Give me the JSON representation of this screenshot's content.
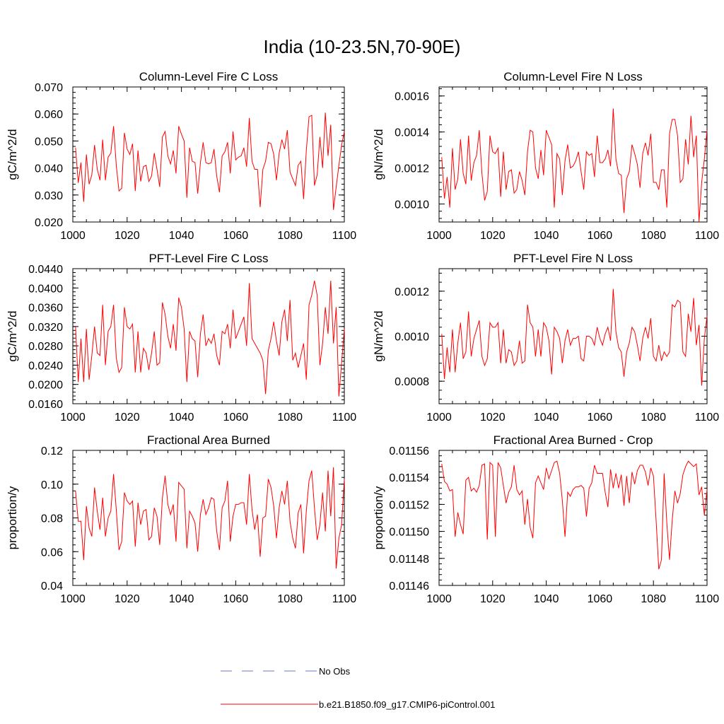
{
  "figure": {
    "title": "India (10-23.5N,70-90E)",
    "line_color": "#ff0000",
    "obs_color": "#6a7bbf",
    "legend": [
      {
        "label": "No Obs",
        "style": "dashed"
      },
      {
        "label": "b.e21.B1850.f09_g17.CMIP6-piControl.001",
        "style": "solid"
      }
    ]
  },
  "chart_data": [
    {
      "type": "line",
      "title": "Column-Level Fire C Loss",
      "ylabel": "gC/m^2/d",
      "xlim": [
        1000,
        1100
      ],
      "ylim": [
        0.02,
        0.07
      ],
      "xticks": [
        "1000",
        "1020",
        "1040",
        "1060",
        "1080",
        "1100"
      ],
      "yticks": [
        "0.020",
        "0.030",
        "0.040",
        "0.050",
        "0.060",
        "0.070"
      ],
      "x_start": 1001,
      "values": [
        0.0475,
        0.0345,
        0.042,
        0.0275,
        0.045,
        0.034,
        0.0375,
        0.0485,
        0.0395,
        0.0355,
        0.0505,
        0.0355,
        0.044,
        0.0455,
        0.0555,
        0.041,
        0.0315,
        0.0325,
        0.053,
        0.047,
        0.045,
        0.049,
        0.0315,
        0.0465,
        0.035,
        0.0405,
        0.041,
        0.035,
        0.037,
        0.0455,
        0.0395,
        0.033,
        0.0515,
        0.0535,
        0.0445,
        0.0415,
        0.0465,
        0.038,
        0.0555,
        0.0525,
        0.05,
        0.029,
        0.0475,
        0.0425,
        0.042,
        0.0305,
        0.042,
        0.0495,
        0.042,
        0.0415,
        0.042,
        0.047,
        0.037,
        0.031,
        0.0445,
        0.046,
        0.0495,
        0.038,
        0.0535,
        0.043,
        0.044,
        0.0445,
        0.0475,
        0.0405,
        0.0585,
        0.0425,
        0.0395,
        0.0395,
        0.0255,
        0.0395,
        0.0425,
        0.0495,
        0.049,
        0.045,
        0.0355,
        0.0455,
        0.0505,
        0.047,
        0.054,
        0.0385,
        0.036,
        0.0335,
        0.041,
        0.0425,
        0.0285,
        0.0465,
        0.059,
        0.0595,
        0.0335,
        0.0375,
        0.0515,
        0.04,
        0.0605,
        0.0445,
        0.056,
        0.0245,
        0.033,
        0.041,
        0.0485,
        0.0535
      ]
    },
    {
      "type": "line",
      "title": "Column-Level Fire N Loss",
      "ylabel": "gN/m^2/d",
      "xlim": [
        1000,
        1100
      ],
      "ylim": [
        0.0009,
        0.00165
      ],
      "xticks": [
        "1000",
        "1020",
        "1040",
        "1060",
        "1080",
        "1100"
      ],
      "yticks": [
        "0.0010",
        "0.0012",
        "0.0014",
        "0.0016"
      ],
      "ytick_values": [
        0.001,
        0.0012,
        0.0014,
        0.0016
      ],
      "x_start": 1001,
      "values": [
        0.00126,
        0.00103,
        0.00115,
        0.00098,
        0.00131,
        0.00108,
        0.00114,
        0.00136,
        0.00117,
        0.00111,
        0.00138,
        0.00113,
        0.00123,
        0.00127,
        0.00141,
        0.00117,
        0.00102,
        0.00107,
        0.00138,
        0.00129,
        0.00128,
        0.00131,
        0.00104,
        0.00129,
        0.00108,
        0.00118,
        0.00119,
        0.00106,
        0.00108,
        0.00118,
        0.00113,
        0.00105,
        0.00129,
        0.00141,
        0.0014,
        0.0012,
        0.00114,
        0.0013,
        0.00116,
        0.00141,
        0.00137,
        0.00133,
        0.00098,
        0.00128,
        0.00125,
        0.00105,
        0.00124,
        0.00133,
        0.0012,
        0.00121,
        0.00124,
        0.00129,
        0.00118,
        0.00108,
        0.00129,
        0.00127,
        0.00128,
        0.00115,
        0.00138,
        0.00123,
        0.00123,
        0.00125,
        0.0013,
        0.00121,
        0.00153,
        0.00125,
        0.00117,
        0.00116,
        0.00095,
        0.00114,
        0.00118,
        0.00133,
        0.00128,
        0.00122,
        0.00109,
        0.00128,
        0.00134,
        0.00127,
        0.00139,
        0.00112,
        0.00112,
        0.00108,
        0.00119,
        0.00119,
        0.00098,
        0.00139,
        0.00147,
        0.00147,
        0.00138,
        0.00112,
        0.00114,
        0.00136,
        0.00122,
        0.00149,
        0.00126,
        0.00138,
        0.0009,
        0.00112,
        0.00125,
        0.00141
      ]
    },
    {
      "type": "line",
      "title": "PFT-Level Fire C Loss",
      "ylabel": "gC/m^2/d",
      "xlim": [
        1000,
        1100
      ],
      "ylim": [
        0.016,
        0.044
      ],
      "xticks": [
        "1000",
        "1020",
        "1040",
        "1060",
        "1080",
        "1100"
      ],
      "yticks": [
        "0.0160",
        "0.0200",
        "0.0240",
        "0.0280",
        "0.0320",
        "0.0360",
        "0.0400",
        "0.0440"
      ],
      "x_start": 1001,
      "values": [
        0.032,
        0.0205,
        0.0295,
        0.0205,
        0.0315,
        0.021,
        0.026,
        0.032,
        0.0265,
        0.026,
        0.0365,
        0.024,
        0.031,
        0.032,
        0.0365,
        0.0255,
        0.0225,
        0.0235,
        0.036,
        0.032,
        0.0315,
        0.0325,
        0.0225,
        0.031,
        0.0225,
        0.0275,
        0.0265,
        0.023,
        0.0265,
        0.031,
        0.024,
        0.0245,
        0.037,
        0.0345,
        0.03,
        0.0275,
        0.0325,
        0.027,
        0.038,
        0.036,
        0.0315,
        0.0205,
        0.031,
        0.0295,
        0.029,
        0.0215,
        0.0305,
        0.0345,
        0.028,
        0.0295,
        0.0285,
        0.0305,
        0.026,
        0.024,
        0.031,
        0.0305,
        0.0325,
        0.0275,
        0.0355,
        0.0295,
        0.031,
        0.0325,
        0.034,
        0.028,
        0.041,
        0.0295,
        0.0285,
        0.0275,
        0.0265,
        0.025,
        0.018,
        0.027,
        0.0295,
        0.033,
        0.029,
        0.026,
        0.033,
        0.0355,
        0.029,
        0.0375,
        0.025,
        0.0265,
        0.0235,
        0.026,
        0.0285,
        0.021,
        0.0365,
        0.0385,
        0.0415,
        0.0385,
        0.024,
        0.0285,
        0.036,
        0.0305,
        0.0415,
        0.0285,
        0.036,
        0.0175,
        0.0245,
        0.0315
      ]
    },
    {
      "type": "line",
      "title": "PFT-Level Fire N Loss",
      "ylabel": "gN/m^2/d",
      "xlim": [
        1000,
        1100
      ],
      "ylim": [
        0.0007,
        0.0013
      ],
      "xticks": [
        "1000",
        "1020",
        "1040",
        "1060",
        "1080",
        "1100"
      ],
      "yticks": [
        "0.0008",
        "0.0010",
        "0.0012"
      ],
      "ytick_values": [
        0.0008,
        0.001,
        0.0012
      ],
      "x_start": 1001,
      "values": [
        0.00101,
        0.00081,
        0.00095,
        0.00084,
        0.00103,
        0.00084,
        0.00097,
        0.00106,
        0.0009,
        0.00093,
        0.00111,
        0.00091,
        0.00099,
        0.00103,
        0.00107,
        0.00091,
        0.00087,
        0.0009,
        0.00106,
        0.00104,
        0.00104,
        0.00106,
        0.00088,
        0.00103,
        0.00088,
        0.00094,
        0.00093,
        0.00087,
        0.00089,
        0.00098,
        0.00088,
        0.00089,
        0.00114,
        0.00106,
        0.00104,
        0.00091,
        0.00103,
        0.00091,
        0.00106,
        0.00104,
        0.00098,
        0.00083,
        0.00104,
        0.00102,
        0.00099,
        0.00088,
        0.00098,
        0.00103,
        0.00096,
        0.00099,
        0.00099,
        0.001,
        0.0009,
        0.00089,
        0.001,
        0.001,
        0.00099,
        0.00096,
        0.00104,
        0.00099,
        0.00096,
        0.00101,
        0.00104,
        0.00098,
        0.00121,
        0.00102,
        0.00095,
        0.00093,
        0.00082,
        0.00093,
        0.00097,
        0.00104,
        0.00102,
        0.00096,
        0.00089,
        0.00099,
        0.00104,
        0.00099,
        0.00108,
        0.00091,
        0.00089,
        0.00096,
        0.00089,
        0.00093,
        0.00091,
        0.00093,
        0.00114,
        0.00113,
        0.00116,
        0.00115,
        0.00093,
        0.00091,
        0.0011,
        0.00102,
        0.00117,
        0.00096,
        0.00105,
        0.00078,
        0.00099,
        0.00109
      ]
    },
    {
      "type": "line",
      "title": "Fractional Area Burned",
      "ylabel": "proportion/y",
      "xlim": [
        1000,
        1100
      ],
      "ylim": [
        0.04,
        0.12
      ],
      "xticks": [
        "1000",
        "1020",
        "1040",
        "1060",
        "1080",
        "1100"
      ],
      "yticks": [
        "0.04",
        "0.06",
        "0.08",
        "0.10",
        "0.12"
      ],
      "ytick_values": [
        0.04,
        0.06,
        0.08,
        0.1,
        0.12
      ],
      "x_start": 1001,
      "values": [
        0.096,
        0.078,
        0.078,
        0.055,
        0.087,
        0.074,
        0.069,
        0.098,
        0.084,
        0.073,
        0.092,
        0.069,
        0.08,
        0.084,
        0.106,
        0.085,
        0.061,
        0.066,
        0.095,
        0.09,
        0.088,
        0.09,
        0.063,
        0.089,
        0.076,
        0.084,
        0.085,
        0.067,
        0.069,
        0.086,
        0.081,
        0.064,
        0.092,
        0.105,
        0.088,
        0.082,
        0.088,
        0.066,
        0.101,
        0.099,
        0.097,
        0.062,
        0.084,
        0.081,
        0.077,
        0.06,
        0.082,
        0.091,
        0.082,
        0.086,
        0.092,
        0.091,
        0.072,
        0.061,
        0.086,
        0.09,
        0.102,
        0.066,
        0.081,
        0.088,
        0.088,
        0.089,
        0.089,
        0.076,
        0.106,
        0.085,
        0.073,
        0.082,
        0.057,
        0.08,
        0.081,
        0.103,
        0.098,
        0.087,
        0.068,
        0.086,
        0.096,
        0.088,
        0.102,
        0.078,
        0.068,
        0.062,
        0.083,
        0.088,
        0.059,
        0.084,
        0.102,
        0.108,
        0.086,
        0.067,
        0.076,
        0.095,
        0.072,
        0.108,
        0.081,
        0.11,
        0.05,
        0.068,
        0.076,
        0.103
      ]
    },
    {
      "type": "line",
      "title": "Fractional Area Burned - Crop",
      "ylabel": "proportion/y",
      "xlim": [
        1000,
        1100
      ],
      "ylim": [
        0.01146,
        0.01156
      ],
      "xticks": [
        "1000",
        "1020",
        "1040",
        "1060",
        "1080",
        "1100"
      ],
      "yticks": [
        "0.01146",
        "0.01148",
        "0.01150",
        "0.01152",
        "0.01154",
        "0.01156"
      ],
      "ytick_values": [
        0.01146,
        0.01148,
        0.0115,
        0.01152,
        0.01154,
        0.01156
      ],
      "x_start": 1001,
      "values": [
        0.01155,
        0.011537,
        0.011535,
        0.01153,
        0.011531,
        0.011496,
        0.011514,
        0.011505,
        0.011498,
        0.011538,
        0.01154,
        0.01153,
        0.011532,
        0.011529,
        0.011534,
        0.011549,
        0.01155,
        0.011494,
        0.011551,
        0.011549,
        0.011496,
        0.011551,
        0.011547,
        0.011534,
        0.011521,
        0.011529,
        0.011533,
        0.011549,
        0.011531,
        0.011527,
        0.01153,
        0.011505,
        0.011524,
        0.011503,
        0.011495,
        0.011536,
        0.011541,
        0.011536,
        0.011531,
        0.011547,
        0.011539,
        0.011545,
        0.011551,
        0.011552,
        0.011543,
        0.011523,
        0.011496,
        0.011529,
        0.011526,
        0.011531,
        0.011533,
        0.011533,
        0.011534,
        0.011532,
        0.011511,
        0.011532,
        0.011536,
        0.011549,
        0.011543,
        0.011543,
        0.011543,
        0.011529,
        0.011518,
        0.011546,
        0.011532,
        0.011543,
        0.011532,
        0.011542,
        0.011519,
        0.011541,
        0.011521,
        0.011544,
        0.011535,
        0.011545,
        0.011549,
        0.011549,
        0.011544,
        0.011534,
        0.011547,
        0.011541,
        0.011508,
        0.011472,
        0.011479,
        0.011543,
        0.011506,
        0.011479,
        0.011508,
        0.01153,
        0.011521,
        0.011528,
        0.011542,
        0.011548,
        0.011552,
        0.01155,
        0.011548,
        0.01155,
        0.011527,
        0.011533,
        0.011512,
        0.011531
      ]
    }
  ]
}
